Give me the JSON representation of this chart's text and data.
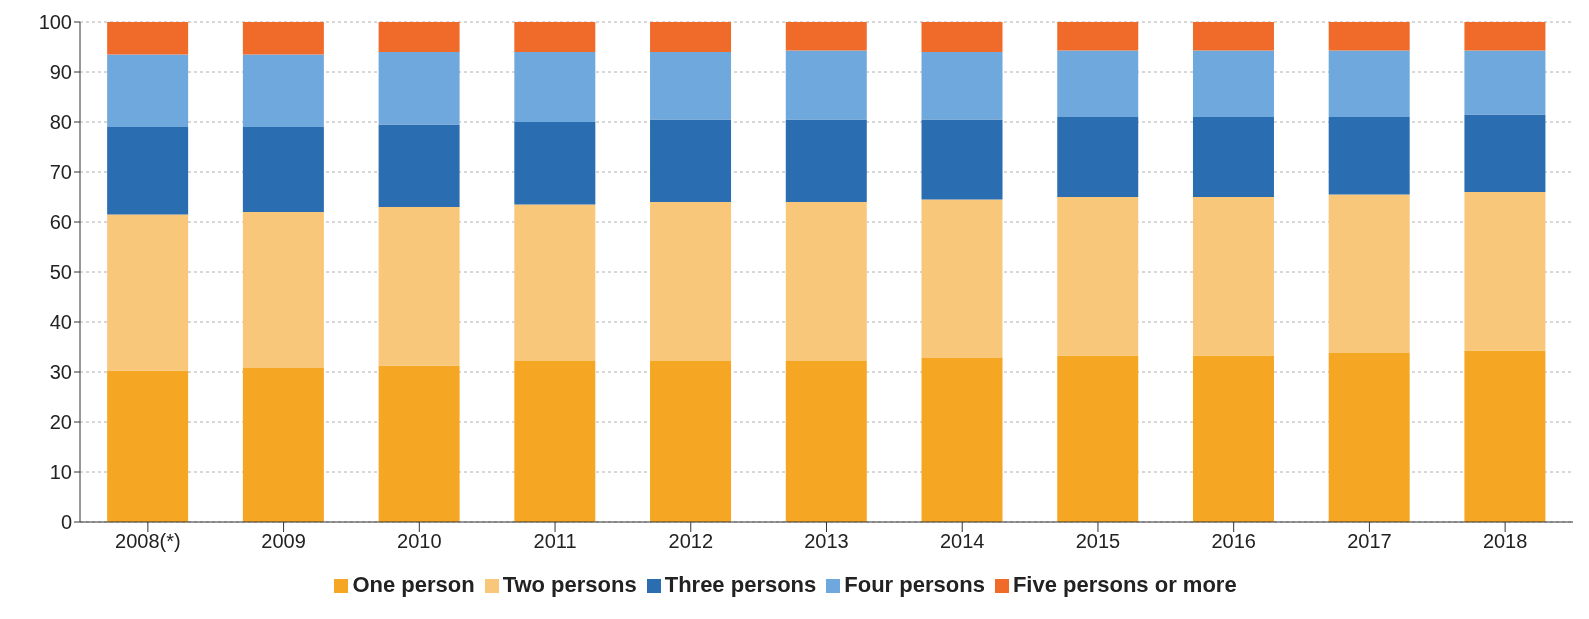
{
  "chart_data": {
    "type": "bar",
    "stacked": true,
    "categories": [
      "2008(*)",
      "2009",
      "2010",
      "2011",
      "2012",
      "2013",
      "2014",
      "2015",
      "2016",
      "2017",
      "2018"
    ],
    "series": [
      {
        "name": "One person",
        "color": "#f5a623",
        "values": [
          30.3,
          30.8,
          31.3,
          32.2,
          32.2,
          32.2,
          32.8,
          33.3,
          33.3,
          33.8,
          34.3
        ]
      },
      {
        "name": "Two persons",
        "color": "#f9c77a",
        "values": [
          31.2,
          31.2,
          31.7,
          31.3,
          31.8,
          31.8,
          31.7,
          31.7,
          31.7,
          31.7,
          31.7
        ]
      },
      {
        "name": "Three persons",
        "color": "#2a6db0",
        "values": [
          17.5,
          17.0,
          16.5,
          16.5,
          16.5,
          16.5,
          16.0,
          16.0,
          16.0,
          15.5,
          15.5
        ]
      },
      {
        "name": "Four persons",
        "color": "#6fa8dc",
        "values": [
          14.5,
          14.5,
          14.5,
          14.0,
          13.5,
          13.8,
          13.5,
          13.3,
          13.3,
          13.3,
          12.8
        ]
      },
      {
        "name": "Five persons or more",
        "color": "#f06a2a",
        "values": [
          6.5,
          6.5,
          6.0,
          6.0,
          6.0,
          5.7,
          6.0,
          5.7,
          5.7,
          5.7,
          5.7
        ]
      }
    ],
    "ylim": [
      0,
      100
    ],
    "yticks": [
      0,
      10,
      20,
      30,
      40,
      50,
      60,
      70,
      80,
      90,
      100
    ],
    "grid": "y",
    "legend": "bottom"
  }
}
